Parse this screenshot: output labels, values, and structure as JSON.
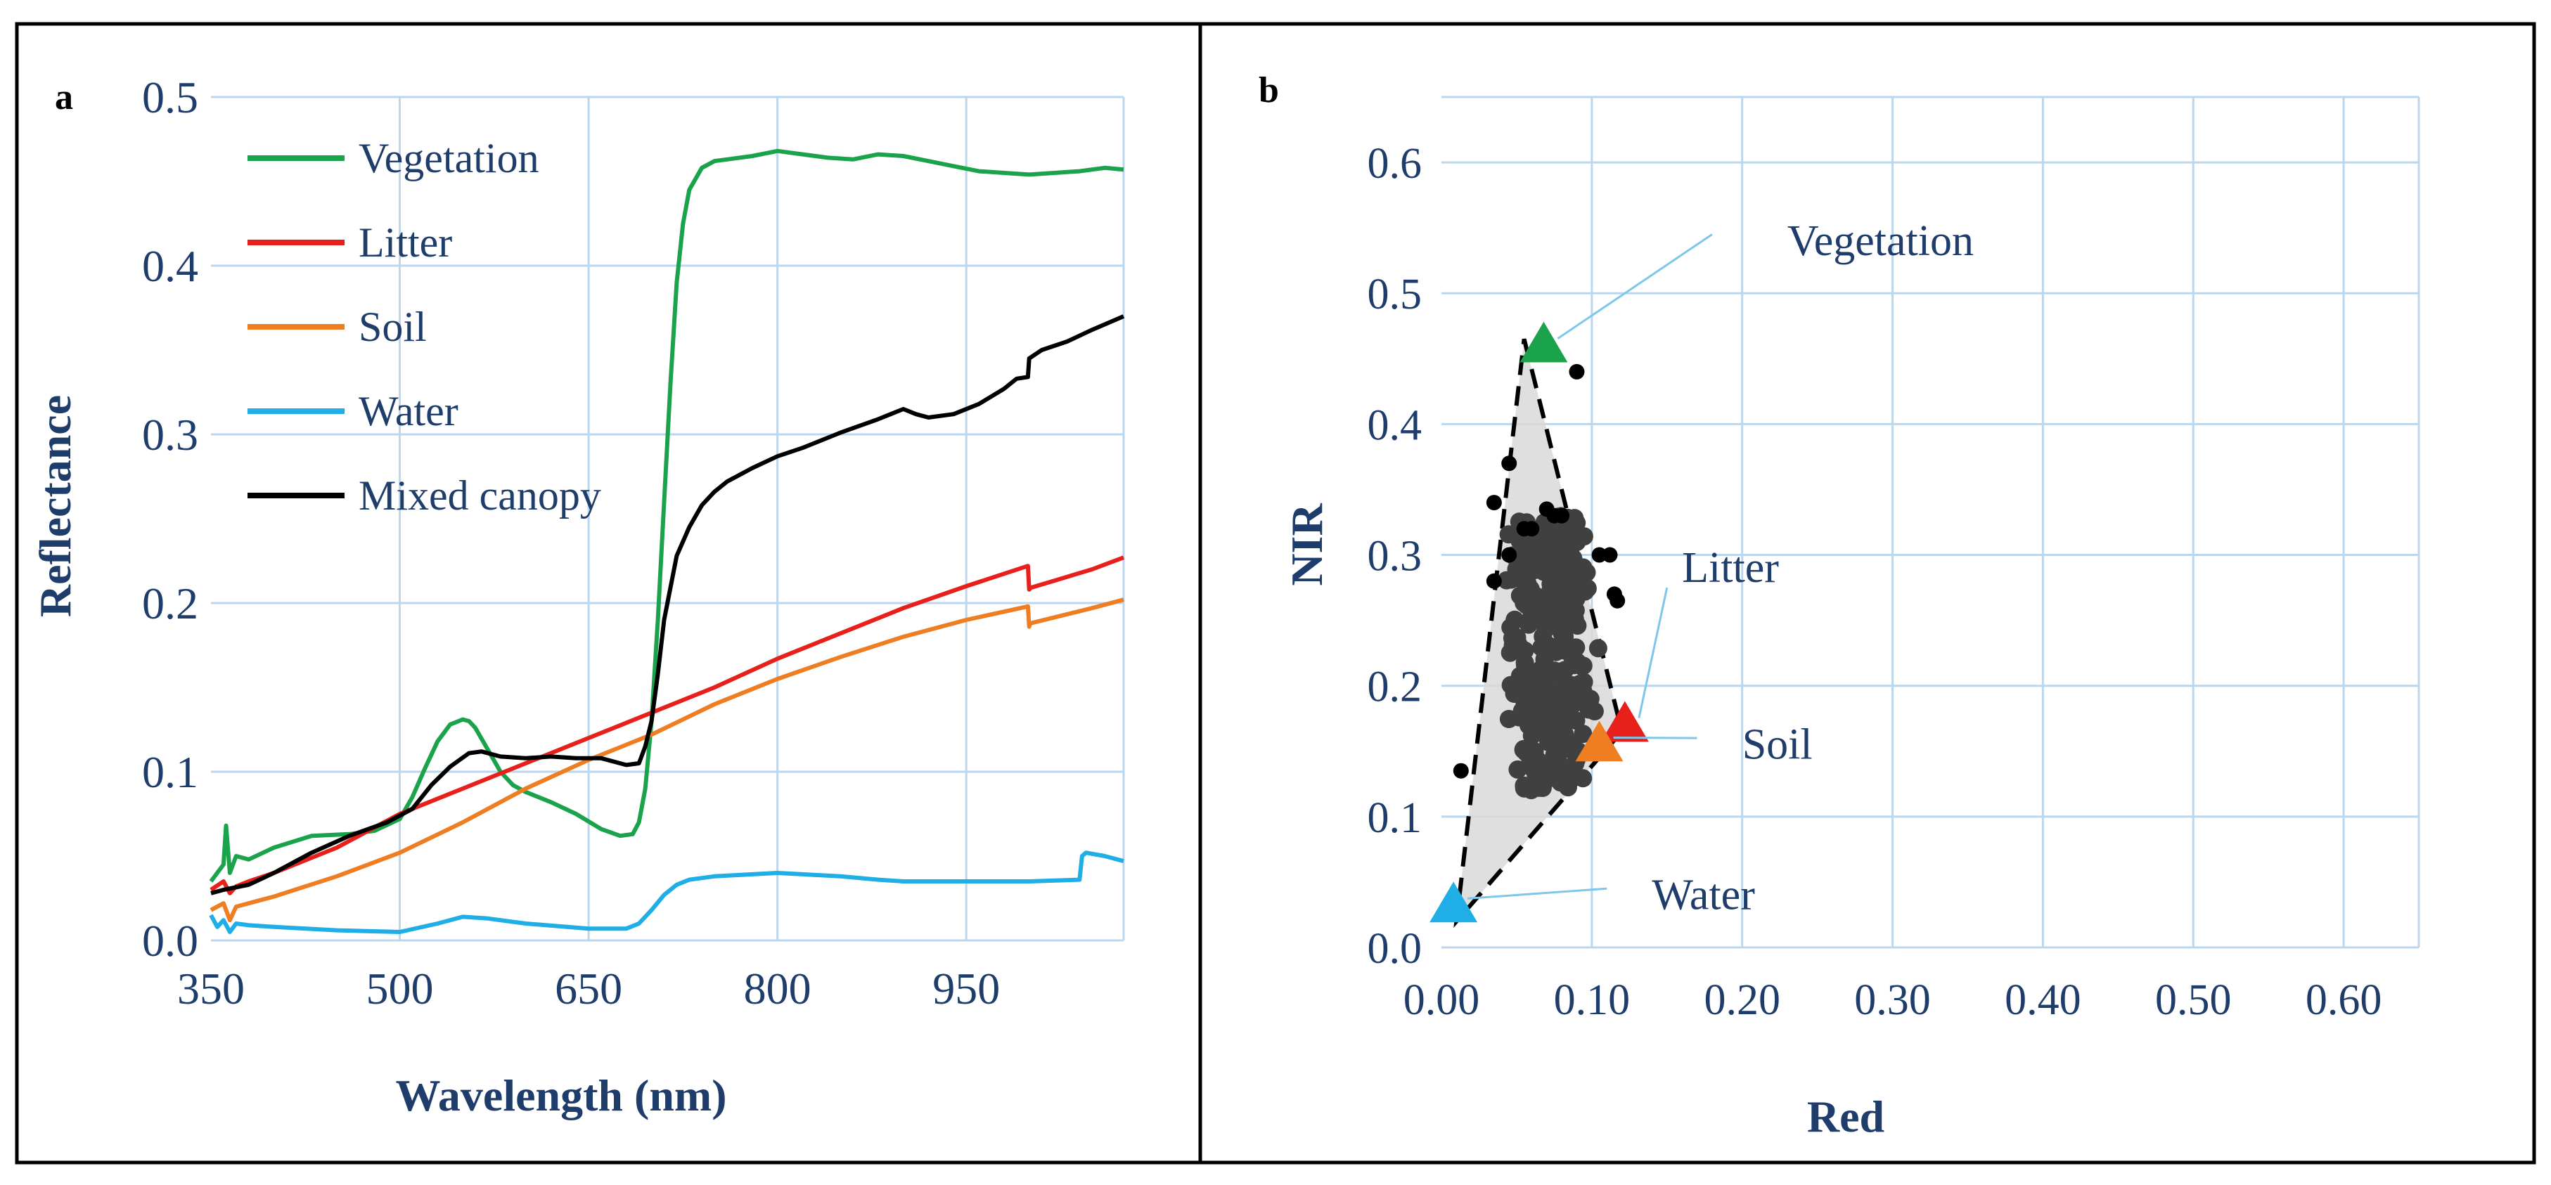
{
  "panels": {
    "a": {
      "label": "a"
    },
    "b": {
      "label": "b"
    }
  },
  "chart_data": [
    {
      "id": "a",
      "type": "line",
      "xlabel": "Wavelength  (nm)",
      "ylabel": "Reflectance",
      "xlim": [
        350,
        1075
      ],
      "ylim": [
        0,
        0.5
      ],
      "xticks": [
        350,
        500,
        650,
        800,
        950
      ],
      "xtick_labels": [
        "350",
        "500",
        "650",
        "800",
        "950"
      ],
      "yticks": [
        0,
        0.1,
        0.2,
        0.3,
        0.4,
        0.5
      ],
      "ytick_labels": [
        "0.0",
        "0.1",
        "0.2",
        "0.3",
        "0.4",
        "0.5"
      ],
      "grid": true,
      "legend_position": "top-left",
      "series": [
        {
          "name": "Vegetation",
          "color": "#1aa34a",
          "x": [
            350,
            360,
            362,
            365,
            370,
            380,
            400,
            430,
            460,
            480,
            500,
            510,
            520,
            530,
            540,
            550,
            555,
            560,
            570,
            580,
            590,
            600,
            620,
            640,
            660,
            675,
            685,
            690,
            695,
            700,
            705,
            710,
            715,
            720,
            725,
            730,
            740,
            750,
            760,
            780,
            800,
            820,
            840,
            860,
            880,
            900,
            920,
            940,
            960,
            980,
            1000,
            1020,
            1040,
            1060,
            1075
          ],
          "y": [
            0.035,
            0.045,
            0.068,
            0.04,
            0.05,
            0.048,
            0.055,
            0.062,
            0.063,
            0.065,
            0.072,
            0.085,
            0.102,
            0.118,
            0.128,
            0.131,
            0.13,
            0.126,
            0.113,
            0.1,
            0.092,
            0.088,
            0.082,
            0.075,
            0.066,
            0.062,
            0.063,
            0.07,
            0.09,
            0.13,
            0.19,
            0.26,
            0.33,
            0.39,
            0.425,
            0.445,
            0.458,
            0.462,
            0.463,
            0.465,
            0.468,
            0.466,
            0.464,
            0.463,
            0.466,
            0.465,
            0.462,
            0.459,
            0.456,
            0.455,
            0.454,
            0.455,
            0.456,
            0.458,
            0.457
          ]
        },
        {
          "name": "Litter",
          "color": "#e8201c",
          "x": [
            350,
            360,
            365,
            370,
            380,
            400,
            450,
            500,
            550,
            600,
            650,
            700,
            750,
            800,
            850,
            900,
            950,
            999,
            1000,
            1001,
            1050,
            1075
          ],
          "y": [
            0.03,
            0.035,
            0.028,
            0.032,
            0.035,
            0.04,
            0.055,
            0.075,
            0.09,
            0.105,
            0.12,
            0.135,
            0.15,
            0.167,
            0.182,
            0.197,
            0.21,
            0.222,
            0.208,
            0.209,
            0.22,
            0.227
          ]
        },
        {
          "name": "Soil",
          "color": "#ef7d22",
          "x": [
            350,
            360,
            365,
            370,
            380,
            400,
            450,
            500,
            550,
            600,
            650,
            700,
            750,
            800,
            850,
            900,
            950,
            999,
            1000,
            1001,
            1050,
            1075
          ],
          "y": [
            0.018,
            0.022,
            0.012,
            0.02,
            0.022,
            0.026,
            0.038,
            0.052,
            0.07,
            0.09,
            0.107,
            0.122,
            0.14,
            0.155,
            0.168,
            0.18,
            0.19,
            0.198,
            0.186,
            0.188,
            0.197,
            0.202
          ]
        },
        {
          "name": "Water",
          "color": "#1faee6",
          "x": [
            350,
            355,
            360,
            365,
            370,
            380,
            400,
            450,
            500,
            530,
            550,
            570,
            600,
            650,
            680,
            690,
            700,
            710,
            720,
            730,
            750,
            800,
            850,
            880,
            900,
            950,
            1000,
            1040,
            1042,
            1045,
            1060,
            1075
          ],
          "y": [
            0.015,
            0.008,
            0.012,
            0.005,
            0.01,
            0.009,
            0.008,
            0.006,
            0.005,
            0.01,
            0.014,
            0.013,
            0.01,
            0.007,
            0.007,
            0.01,
            0.018,
            0.027,
            0.033,
            0.036,
            0.038,
            0.04,
            0.038,
            0.036,
            0.035,
            0.035,
            0.035,
            0.036,
            0.05,
            0.052,
            0.05,
            0.047
          ]
        },
        {
          "name": "Mixed canopy",
          "color": "#000000",
          "x": [
            350,
            360,
            380,
            400,
            430,
            460,
            490,
            510,
            525,
            540,
            555,
            565,
            580,
            600,
            620,
            640,
            660,
            680,
            690,
            695,
            700,
            705,
            710,
            720,
            730,
            740,
            750,
            760,
            780,
            800,
            820,
            850,
            880,
            900,
            910,
            920,
            940,
            960,
            980,
            990,
            999,
            1000,
            1010,
            1030,
            1050,
            1075
          ],
          "y": [
            0.028,
            0.03,
            0.033,
            0.04,
            0.052,
            0.062,
            0.07,
            0.078,
            0.092,
            0.103,
            0.111,
            0.112,
            0.109,
            0.108,
            0.109,
            0.108,
            0.108,
            0.104,
            0.105,
            0.115,
            0.13,
            0.158,
            0.19,
            0.228,
            0.245,
            0.258,
            0.266,
            0.272,
            0.28,
            0.287,
            0.292,
            0.301,
            0.309,
            0.315,
            0.312,
            0.31,
            0.312,
            0.318,
            0.327,
            0.333,
            0.334,
            0.345,
            0.35,
            0.355,
            0.362,
            0.37
          ]
        }
      ]
    },
    {
      "id": "b",
      "type": "scatter",
      "xlabel": "Red",
      "ylabel": "NIR",
      "xlim": [
        0,
        0.65
      ],
      "ylim": [
        0,
        0.65
      ],
      "xticks": [
        0,
        0.1,
        0.2,
        0.3,
        0.4,
        0.5,
        0.6
      ],
      "xtick_labels": [
        "0.00",
        "0.10",
        "0.20",
        "0.30",
        "0.40",
        "0.50",
        "0.60"
      ],
      "yticks": [
        0,
        0.1,
        0.2,
        0.3,
        0.4,
        0.5,
        0.6
      ],
      "ytick_labels": [
        "0.0",
        "0.1",
        "0.2",
        "0.3",
        "0.4",
        "0.5",
        "0.6"
      ],
      "grid": true,
      "hull": {
        "points": [
          [
            0.055,
            0.465
          ],
          [
            0.12,
            0.165
          ],
          [
            0.01,
            0.02
          ],
          [
            0.055,
            0.465
          ]
        ],
        "fill": "#d9d9d9",
        "stroke": "#000000"
      },
      "endmembers": [
        {
          "name": "Vegetation",
          "x": 0.068,
          "y": 0.46,
          "color": "#1aa34a",
          "label_x": 0.23,
          "label_y": 0.54,
          "line_end": [
            0.18,
            0.545
          ]
        },
        {
          "name": "Litter",
          "x": 0.122,
          "y": 0.17,
          "color": "#e8201c",
          "label_x": 0.16,
          "label_y": 0.29,
          "line_end": [
            0.15,
            0.275
          ]
        },
        {
          "name": "Soil",
          "x": 0.105,
          "y": 0.155,
          "color": "#ef7d22",
          "label_x": 0.2,
          "label_y": 0.155,
          "line_end": [
            0.17,
            0.16
          ]
        },
        {
          "name": "Water",
          "x": 0.008,
          "y": 0.032,
          "color": "#1faee6",
          "label_x": 0.14,
          "label_y": 0.04,
          "line_end": [
            0.11,
            0.045
          ]
        }
      ],
      "outlier_points": [
        [
          0.09,
          0.44
        ],
        [
          0.035,
          0.34
        ],
        [
          0.045,
          0.37
        ],
        [
          0.045,
          0.3
        ],
        [
          0.035,
          0.28
        ],
        [
          0.013,
          0.135
        ],
        [
          0.115,
          0.27
        ],
        [
          0.117,
          0.265
        ],
        [
          0.112,
          0.3
        ],
        [
          0.105,
          0.3
        ],
        [
          0.075,
          0.33
        ],
        [
          0.08,
          0.33
        ],
        [
          0.06,
          0.32
        ],
        [
          0.07,
          0.335
        ],
        [
          0.055,
          0.32
        ]
      ],
      "cluster": {
        "x_range": [
          0.045,
          0.11
        ],
        "y_range": [
          0.12,
          0.33
        ],
        "count": 320,
        "color": "#404040"
      }
    }
  ]
}
